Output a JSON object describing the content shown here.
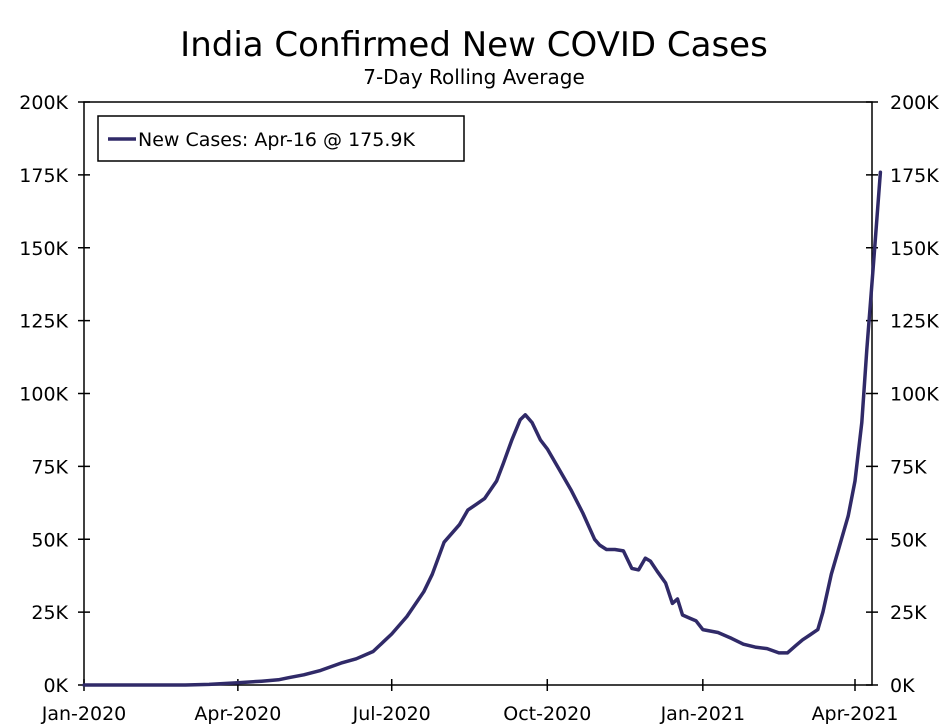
{
  "chart_data": {
    "type": "line",
    "title": "India Confirmed New COVID Cases",
    "subtitle": "7-Day Rolling Average",
    "xlabel": "",
    "ylabel": "",
    "ylim": [
      0,
      200000
    ],
    "y_ticks": [
      0,
      25000,
      50000,
      75000,
      100000,
      125000,
      150000,
      175000,
      200000
    ],
    "y_tick_labels": [
      "0K",
      "25K",
      "50K",
      "75K",
      "100K",
      "125K",
      "150K",
      "175K",
      "200K"
    ],
    "xlim": [
      "2020-01-01",
      "2021-04-30"
    ],
    "x_ticks": [
      "2020-01-01",
      "2020-04-01",
      "2020-07-01",
      "2020-10-01",
      "2021-01-01",
      "2021-04-01"
    ],
    "x_tick_labels": [
      "Jan-2020",
      "Apr-2020",
      "Jul-2020",
      "Oct-2020",
      "Jan-2021",
      "Apr-2021"
    ],
    "grid": false,
    "legend_position": "top-left",
    "legend": [
      "New Cases: Apr-16 @ 175.9K"
    ],
    "series": [
      {
        "name": "New Cases",
        "color": "#302a68",
        "points": [
          [
            "2020-01-01",
            0
          ],
          [
            "2020-02-01",
            0
          ],
          [
            "2020-03-01",
            0
          ],
          [
            "2020-03-15",
            200
          ],
          [
            "2020-04-01",
            800
          ],
          [
            "2020-04-15",
            1300
          ],
          [
            "2020-04-25",
            1800
          ],
          [
            "2020-05-01",
            2500
          ],
          [
            "2020-05-10",
            3500
          ],
          [
            "2020-05-20",
            5000
          ],
          [
            "2020-06-01",
            7500
          ],
          [
            "2020-06-10",
            9000
          ],
          [
            "2020-06-20",
            11500
          ],
          [
            "2020-07-01",
            17500
          ],
          [
            "2020-07-10",
            23500
          ],
          [
            "2020-07-20",
            32000
          ],
          [
            "2020-07-25",
            38000
          ],
          [
            "2020-08-01",
            49000
          ],
          [
            "2020-08-10",
            55000
          ],
          [
            "2020-08-15",
            60000
          ],
          [
            "2020-08-20",
            62000
          ],
          [
            "2020-08-25",
            64000
          ],
          [
            "2020-09-01",
            70000
          ],
          [
            "2020-09-05",
            76000
          ],
          [
            "2020-09-10",
            84000
          ],
          [
            "2020-09-15",
            91000
          ],
          [
            "2020-09-18",
            92700
          ],
          [
            "2020-09-22",
            90000
          ],
          [
            "2020-09-27",
            84000
          ],
          [
            "2020-10-01",
            81000
          ],
          [
            "2020-10-08",
            74000
          ],
          [
            "2020-10-15",
            67000
          ],
          [
            "2020-10-22",
            59000
          ],
          [
            "2020-10-29",
            50000
          ],
          [
            "2020-11-01",
            48000
          ],
          [
            "2020-11-05",
            46500
          ],
          [
            "2020-11-10",
            46500
          ],
          [
            "2020-11-15",
            46000
          ],
          [
            "2020-11-20",
            40000
          ],
          [
            "2020-11-24",
            39500
          ],
          [
            "2020-11-28",
            43500
          ],
          [
            "2020-12-01",
            42500
          ],
          [
            "2020-12-05",
            39000
          ],
          [
            "2020-12-10",
            35000
          ],
          [
            "2020-12-14",
            28000
          ],
          [
            "2020-12-17",
            29500
          ],
          [
            "2020-12-20",
            24000
          ],
          [
            "2020-12-24",
            23000
          ],
          [
            "2020-12-28",
            22000
          ],
          [
            "2021-01-01",
            19000
          ],
          [
            "2021-01-10",
            18000
          ],
          [
            "2021-01-18",
            16000
          ],
          [
            "2021-01-25",
            14000
          ],
          [
            "2021-02-01",
            13000
          ],
          [
            "2021-02-08",
            12500
          ],
          [
            "2021-02-15",
            11000
          ],
          [
            "2021-02-20",
            11000
          ],
          [
            "2021-02-25",
            13500
          ],
          [
            "2021-03-01",
            15500
          ],
          [
            "2021-03-05",
            17000
          ],
          [
            "2021-03-10",
            19000
          ],
          [
            "2021-03-13",
            25000
          ],
          [
            "2021-03-18",
            38000
          ],
          [
            "2021-03-22",
            46000
          ],
          [
            "2021-03-28",
            58000
          ],
          [
            "2021-04-01",
            70000
          ],
          [
            "2021-04-05",
            90000
          ],
          [
            "2021-04-08",
            115000
          ],
          [
            "2021-04-12",
            145000
          ],
          [
            "2021-04-16",
            175900
          ]
        ]
      }
    ]
  }
}
